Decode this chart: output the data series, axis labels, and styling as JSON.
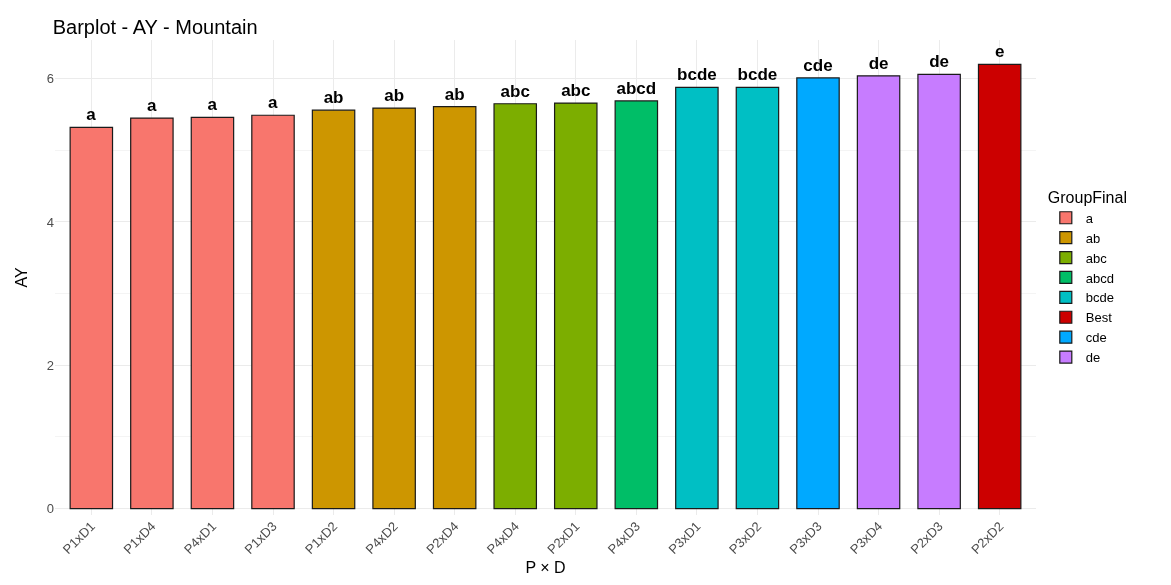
{
  "chart_data": {
    "type": "bar",
    "title": "Barplot - AY - Mountain",
    "xlabel": "P × D",
    "ylabel": "AY",
    "legend_title": "GroupFinal",
    "categories": [
      "P1xD1",
      "P1xD4",
      "P4xD1",
      "P1xD3",
      "P1xD2",
      "P4xD2",
      "P2xD4",
      "P4xD4",
      "P2xD1",
      "P4xD3",
      "P3xD1",
      "P3xD2",
      "P3xD3",
      "P3xD4",
      "P2xD3",
      "P2xD2"
    ],
    "series": [
      {
        "name": "a",
        "color": "#f8766d",
        "values": [
          5.32,
          5.45,
          5.46,
          5.49,
          null,
          null,
          null,
          null,
          null,
          null,
          null,
          null,
          null,
          null,
          null,
          null
        ],
        "value_labels": [
          "a",
          "a",
          "a",
          "a",
          null,
          null,
          null,
          null,
          null,
          null,
          null,
          null,
          null,
          null,
          null,
          null
        ]
      },
      {
        "name": "ab",
        "color": "#cd9600",
        "values": [
          null,
          null,
          null,
          null,
          5.56,
          5.59,
          5.61,
          null,
          null,
          null,
          null,
          null,
          null,
          null,
          null,
          null
        ],
        "value_labels": [
          null,
          null,
          null,
          null,
          "ab",
          "ab",
          "ab",
          null,
          null,
          null,
          null,
          null,
          null,
          null,
          null,
          null
        ]
      },
      {
        "name": "abc",
        "color": "#7cae00",
        "values": [
          null,
          null,
          null,
          null,
          null,
          null,
          null,
          5.65,
          5.66,
          null,
          null,
          null,
          null,
          null,
          null,
          null
        ],
        "value_labels": [
          null,
          null,
          null,
          null,
          null,
          null,
          null,
          "abc",
          "abc",
          null,
          null,
          null,
          null,
          null,
          null,
          null
        ]
      },
      {
        "name": "abcd",
        "color": "#00be67",
        "values": [
          null,
          null,
          null,
          null,
          null,
          null,
          null,
          null,
          null,
          5.69,
          null,
          null,
          null,
          null,
          null,
          null
        ],
        "value_labels": [
          null,
          null,
          null,
          null,
          null,
          null,
          null,
          null,
          null,
          "abcd",
          null,
          null,
          null,
          null,
          null,
          null
        ]
      },
      {
        "name": "bcde",
        "color": "#00bfc4",
        "values": [
          null,
          null,
          null,
          null,
          null,
          null,
          null,
          null,
          null,
          null,
          5.88,
          5.88,
          null,
          null,
          null,
          null
        ],
        "value_labels": [
          null,
          null,
          null,
          null,
          null,
          null,
          null,
          null,
          null,
          null,
          "bcde",
          "bcde",
          null,
          null,
          null,
          null
        ]
      },
      {
        "name": "Best",
        "color": "#cc0000",
        "values": [
          null,
          null,
          null,
          null,
          null,
          null,
          null,
          null,
          null,
          null,
          null,
          null,
          null,
          null,
          null,
          6.2
        ],
        "value_labels": [
          null,
          null,
          null,
          null,
          null,
          null,
          null,
          null,
          null,
          null,
          null,
          null,
          null,
          null,
          null,
          "e"
        ]
      },
      {
        "name": "cde",
        "color": "#00a9ff",
        "values": [
          null,
          null,
          null,
          null,
          null,
          null,
          null,
          null,
          null,
          null,
          null,
          null,
          6.01,
          null,
          null,
          null
        ],
        "value_labels": [
          null,
          null,
          null,
          null,
          null,
          null,
          null,
          null,
          null,
          null,
          null,
          null,
          "cde",
          null,
          null,
          null
        ]
      },
      {
        "name": "de",
        "color": "#c77cff",
        "values": [
          null,
          null,
          null,
          null,
          null,
          null,
          null,
          null,
          null,
          null,
          null,
          null,
          null,
          6.04,
          6.06,
          null
        ],
        "value_labels": [
          null,
          null,
          null,
          null,
          null,
          null,
          null,
          null,
          null,
          null,
          null,
          null,
          null,
          "de",
          "de",
          null
        ]
      }
    ],
    "ylim": [
      -0.09,
      6.54
    ],
    "yticks": [
      0,
      2,
      4,
      6
    ],
    "grid": true,
    "legend": "right"
  }
}
